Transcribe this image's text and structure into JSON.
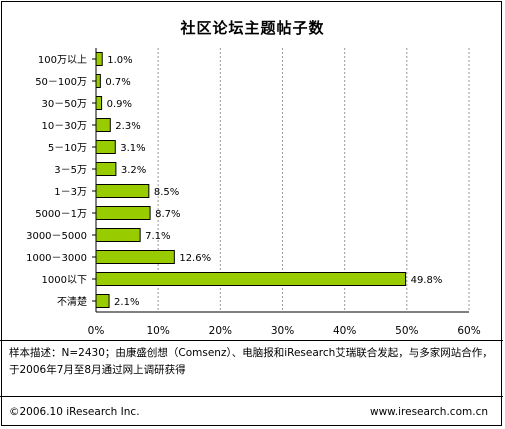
{
  "chart_data": {
    "type": "bar",
    "orientation": "horizontal",
    "title": "社区论坛主题帖子数",
    "categories": [
      "100万以上",
      "50－100万",
      "30－50万",
      "10－30万",
      "5－10万",
      "3－5万",
      "1－3万",
      "5000－1万",
      "3000－5000",
      "1000－3000",
      "1000以下",
      "不清楚"
    ],
    "values": [
      1.0,
      0.7,
      0.9,
      2.3,
      3.1,
      3.2,
      8.5,
      8.7,
      7.1,
      12.6,
      49.8,
      2.1
    ],
    "value_labels": [
      "1.0%",
      "0.7%",
      "0.9%",
      "2.3%",
      "3.1%",
      "3.2%",
      "8.5%",
      "8.7%",
      "7.1%",
      "12.6%",
      "49.8%",
      "2.1%"
    ],
    "xlim": [
      0,
      60
    ],
    "xticks": [
      "0%",
      "10%",
      "20%",
      "30%",
      "40%",
      "50%",
      "60%"
    ],
    "xlabel": "",
    "ylabel": "",
    "grid": "vertical dashed",
    "bar_color": "#99cc00"
  },
  "note": "样本描述：N=2430；由康盛创想（Comsenz）、电脑报和iResearch艾瑞联合发起，与多家网站合作，于2006年7月至8月通过网上调研获得",
  "footer": {
    "left": "©2006.10 iResearch Inc.",
    "right": "www.iresearch.com.cn"
  }
}
